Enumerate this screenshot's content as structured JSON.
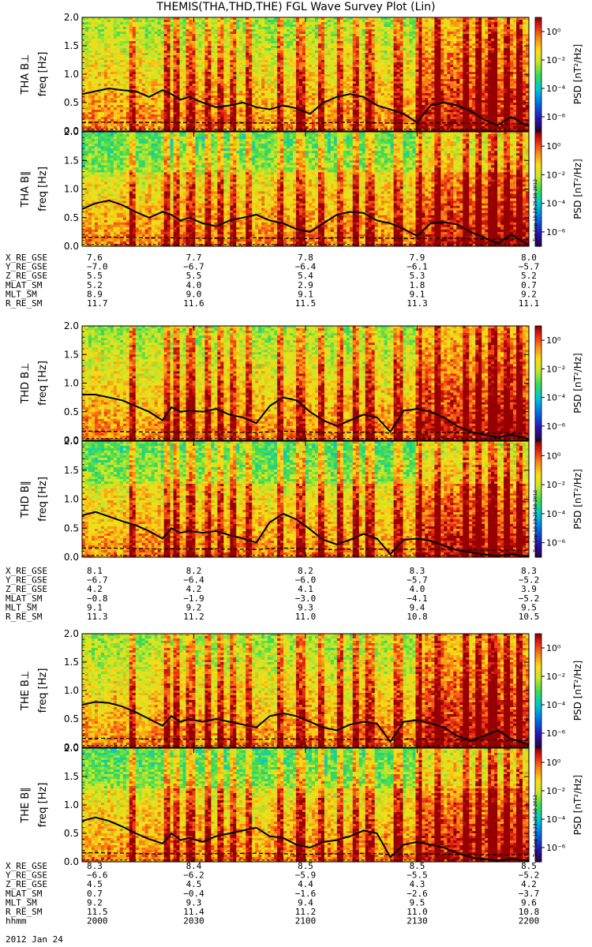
{
  "title": "THEMIS(THA,THD,THE) FGL Wave Survey Plot (Lin)",
  "ylabel": "freq [Hz]",
  "ytick_labels": [
    "0.0",
    "0.5",
    "1.0",
    "1.5",
    "2.0"
  ],
  "colorbar": {
    "label": "PSD [nT²/Hz]",
    "tick_labels": [
      "10⁰",
      "10⁻²",
      "10⁻⁴",
      "10⁻⁶"
    ],
    "tick_exponents": [
      0,
      -2,
      -4,
      -6
    ],
    "range_exponent": [
      -7,
      1
    ]
  },
  "timestamp": "Tue Sep 18 23:25:58 2012",
  "colors": {
    "black_curve": "#000000",
    "background": "#ffffff"
  },
  "chart_data": {
    "type": "heatmap",
    "x_range_hhmm": [
      "2000",
      "2200"
    ],
    "y_range_hz": [
      0,
      2.0
    ],
    "x_tick_hhmm": [
      "2000",
      "2030",
      "2100",
      "2130",
      "2200"
    ],
    "date": "2012 Jan 24",
    "bright_time_fractions": [
      0.11,
      0.185,
      0.21,
      0.24,
      0.28,
      0.305,
      0.335,
      0.37,
      0.44,
      0.485,
      0.53,
      0.575,
      0.61,
      0.64,
      0.705,
      0.75,
      0.79,
      0.855,
      0.885,
      0.915,
      0.945,
      0.975
    ],
    "dark_start_fraction": 0.75,
    "curve_time": [
      0,
      0.03,
      0.06,
      0.09,
      0.12,
      0.15,
      0.18,
      0.2,
      0.22,
      0.24,
      0.27,
      0.3,
      0.33,
      0.36,
      0.39,
      0.42,
      0.45,
      0.48,
      0.51,
      0.54,
      0.57,
      0.6,
      0.63,
      0.66,
      0.69,
      0.72,
      0.75,
      0.78,
      0.81,
      0.84,
      0.87,
      0.9,
      0.93,
      0.96,
      1.0
    ],
    "panels": [
      {
        "probe": "THA",
        "label": "THA B⊥",
        "curve_hz": [
          0.65,
          0.7,
          0.75,
          0.72,
          0.7,
          0.6,
          0.72,
          0.65,
          0.55,
          0.6,
          0.5,
          0.42,
          0.45,
          0.5,
          0.42,
          0.38,
          0.45,
          0.4,
          0.3,
          0.5,
          0.6,
          0.65,
          0.6,
          0.45,
          0.38,
          0.3,
          0.15,
          0.45,
          0.5,
          0.45,
          0.35,
          0.2,
          0.1,
          0.25,
          0.08
        ]
      },
      {
        "probe": "THA",
        "label": "THA B∥",
        "curve_hz": [
          0.65,
          0.75,
          0.8,
          0.72,
          0.6,
          0.5,
          0.6,
          0.55,
          0.45,
          0.5,
          0.4,
          0.35,
          0.45,
          0.5,
          0.55,
          0.45,
          0.4,
          0.3,
          0.25,
          0.4,
          0.55,
          0.6,
          0.58,
          0.45,
          0.4,
          0.3,
          0.18,
          0.4,
          0.42,
          0.38,
          0.25,
          0.15,
          0.05,
          0.2,
          0.02
        ]
      },
      {
        "probe": "THD",
        "label": "THD B⊥",
        "curve_hz": [
          0.8,
          0.8,
          0.75,
          0.7,
          0.6,
          0.5,
          0.35,
          0.58,
          0.5,
          0.52,
          0.5,
          0.55,
          0.45,
          0.4,
          0.3,
          0.6,
          0.75,
          0.7,
          0.5,
          0.35,
          0.25,
          0.35,
          0.45,
          0.4,
          0.15,
          0.52,
          0.55,
          0.5,
          0.4,
          0.25,
          0.15,
          0.1,
          0.05,
          0.1,
          0.02
        ]
      },
      {
        "probe": "THD",
        "label": "THD B∥",
        "curve_hz": [
          0.72,
          0.78,
          0.7,
          0.62,
          0.55,
          0.45,
          0.32,
          0.5,
          0.42,
          0.45,
          0.42,
          0.45,
          0.38,
          0.32,
          0.25,
          0.6,
          0.75,
          0.65,
          0.48,
          0.3,
          0.22,
          0.3,
          0.4,
          0.32,
          0.05,
          0.3,
          0.32,
          0.28,
          0.2,
          0.12,
          0.08,
          0.05,
          0.02,
          0.05,
          0.01
        ]
      },
      {
        "probe": "THE",
        "label": "THE B⊥",
        "curve_hz": [
          0.75,
          0.8,
          0.78,
          0.72,
          0.62,
          0.5,
          0.38,
          0.55,
          0.45,
          0.5,
          0.45,
          0.5,
          0.45,
          0.4,
          0.35,
          0.55,
          0.6,
          0.55,
          0.45,
          0.35,
          0.3,
          0.4,
          0.45,
          0.42,
          0.1,
          0.45,
          0.48,
          0.42,
          0.35,
          0.2,
          0.12,
          0.2,
          0.3,
          0.15,
          0.05
        ]
      },
      {
        "probe": "THE",
        "label": "THE B∥",
        "curve_hz": [
          0.72,
          0.78,
          0.72,
          0.62,
          0.5,
          0.4,
          0.32,
          0.5,
          0.38,
          0.42,
          0.35,
          0.45,
          0.5,
          0.55,
          0.6,
          0.45,
          0.42,
          0.3,
          0.25,
          0.35,
          0.38,
          0.45,
          0.55,
          0.5,
          0.08,
          0.3,
          0.35,
          0.3,
          0.25,
          0.15,
          0.08,
          0.05,
          0.02,
          0.05,
          0.02
        ]
      }
    ]
  },
  "ephemeris": [
    {
      "probe": "THA",
      "rows": [
        {
          "label": "X_RE_GSE",
          "values": [
            "7.6",
            "7.7",
            "7.8",
            "7.9",
            "8.0"
          ]
        },
        {
          "label": "Y_RE_GSE",
          "values": [
            "−7.0",
            "−6.7",
            "−6.4",
            "−6.1",
            "−5.7"
          ]
        },
        {
          "label": "Z_RE_GSE",
          "values": [
            "5.5",
            "5.5",
            "5.4",
            "5.3",
            "5.2"
          ]
        },
        {
          "label": "MLAT_SM",
          "values": [
            "5.2",
            "4.0",
            "2.9",
            "1.8",
            "0.7"
          ]
        },
        {
          "label": "MLT_SM",
          "values": [
            "8.9",
            "9.0",
            "9.1",
            "9.1",
            "9.2"
          ]
        },
        {
          "label": "R_RE_SM",
          "values": [
            "11.7",
            "11.6",
            "11.5",
            "11.3",
            "11.1"
          ]
        }
      ]
    },
    {
      "probe": "THD",
      "rows": [
        {
          "label": "X_RE_GSE",
          "values": [
            "8.1",
            "8.2",
            "8.2",
            "8.3",
            "8.3"
          ]
        },
        {
          "label": "Y_RE_GSE",
          "values": [
            "−6.7",
            "−6.4",
            "−6.0",
            "−5.7",
            "−5.2"
          ]
        },
        {
          "label": "Z_RE_GSE",
          "values": [
            "4.2",
            "4.2",
            "4.1",
            "4.0",
            "3.9"
          ]
        },
        {
          "label": "MLAT_SM",
          "values": [
            "−0.8",
            "−1.9",
            "−3.0",
            "−4.1",
            "−5.2"
          ]
        },
        {
          "label": "MLT_SM",
          "values": [
            "9.1",
            "9.2",
            "9.3",
            "9.4",
            "9.5"
          ]
        },
        {
          "label": "R_RE_SM",
          "values": [
            "11.3",
            "11.2",
            "11.0",
            "10.8",
            "10.5"
          ]
        }
      ]
    },
    {
      "probe": "THE",
      "rows": [
        {
          "label": "X_RE_GSE",
          "values": [
            "8.3",
            "8.4",
            "8.5",
            "8.5",
            "8.5"
          ]
        },
        {
          "label": "Y_RE_GSE",
          "values": [
            "−6.6",
            "−6.2",
            "−5.9",
            "−5.5",
            "−5.2"
          ]
        },
        {
          "label": "Z_RE_GSE",
          "values": [
            "4.5",
            "4.5",
            "4.4",
            "4.3",
            "4.2"
          ]
        },
        {
          "label": "MLAT_SM",
          "values": [
            "0.7",
            "−0.4",
            "−1.6",
            "−2.6",
            "−3.7"
          ]
        },
        {
          "label": "MLT_SM",
          "values": [
            "9.2",
            "9.3",
            "9.4",
            "9.5",
            "9.6"
          ]
        },
        {
          "label": "R_RE_SM",
          "values": [
            "11.5",
            "11.4",
            "11.2",
            "11.0",
            "10.8"
          ]
        },
        {
          "label": "hhmm",
          "values": [
            "2000",
            "2030",
            "2100",
            "2130",
            "2200"
          ]
        }
      ]
    }
  ],
  "date_label": "2012 Jan 24"
}
